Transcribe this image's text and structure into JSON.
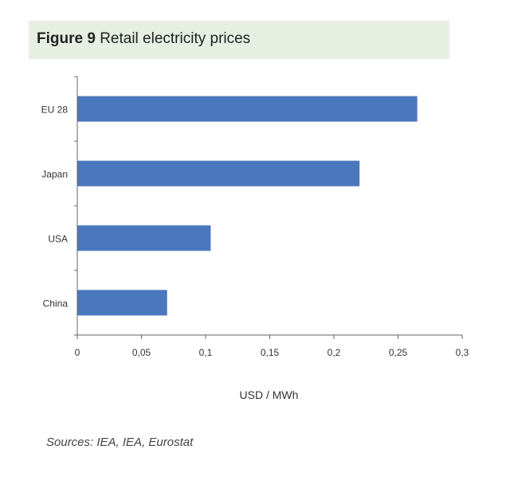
{
  "figure": {
    "label": "Figure 9",
    "title": "Retail electricity prices"
  },
  "source": "Sources: IEA, IEA, Eurostat",
  "colors": {
    "bar": "#4a78be",
    "axis": "#666666",
    "title_bg": "#e6efe2"
  },
  "chart_data": {
    "type": "bar",
    "orientation": "horizontal",
    "categories": [
      "EU 28",
      "Japan",
      "USA",
      "China"
    ],
    "values": [
      0.265,
      0.22,
      0.104,
      0.07
    ],
    "xlabel": "USD / MWh",
    "ylabel": "",
    "xlim": [
      0,
      0.3
    ],
    "ticks": [
      {
        "value": 0,
        "label": "0"
      },
      {
        "value": 0.05,
        "label": "0,05"
      },
      {
        "value": 0.1,
        "label": "0,1"
      },
      {
        "value": 0.15,
        "label": "0,15"
      },
      {
        "value": 0.2,
        "label": "0,2"
      },
      {
        "value": 0.25,
        "label": "0,25"
      },
      {
        "value": 0.3,
        "label": "0,3"
      }
    ],
    "grid": false,
    "legend": "none"
  }
}
